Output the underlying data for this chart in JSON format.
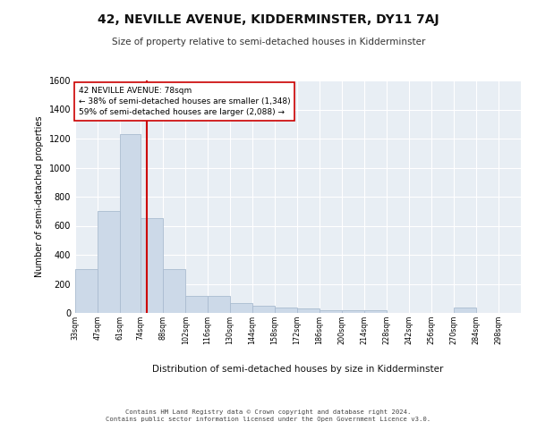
{
  "title": "42, NEVILLE AVENUE, KIDDERMINSTER, DY11 7AJ",
  "subtitle": "Size of property relative to semi-detached houses in Kidderminster",
  "xlabel": "Distribution of semi-detached houses by size in Kidderminster",
  "ylabel": "Number of semi-detached properties",
  "property_size": 78,
  "bin_edges": [
    33,
    47,
    61,
    74,
    88,
    102,
    116,
    130,
    144,
    158,
    172,
    186,
    200,
    214,
    228,
    242,
    256,
    270,
    284,
    298,
    312
  ],
  "bar_heights": [
    300,
    700,
    1230,
    650,
    300,
    120,
    120,
    70,
    50,
    35,
    30,
    20,
    20,
    20,
    0,
    0,
    0,
    40,
    0,
    0
  ],
  "bar_color": "#ccd9e8",
  "bar_edge_color": "#aabcd0",
  "vline_color": "#cc0000",
  "annotation_text": "42 NEVILLE AVENUE: 78sqm\n← 38% of semi-detached houses are smaller (1,348)\n59% of semi-detached houses are larger (2,088) →",
  "ylim": [
    0,
    1600
  ],
  "yticks": [
    0,
    200,
    400,
    600,
    800,
    1000,
    1200,
    1400,
    1600
  ],
  "bg_color": "#e8eef4",
  "fig_bg": "#ffffff",
  "footer_line1": "Contains HM Land Registry data © Crown copyright and database right 2024.",
  "footer_line2": "Contains public sector information licensed under the Open Government Licence v3.0."
}
